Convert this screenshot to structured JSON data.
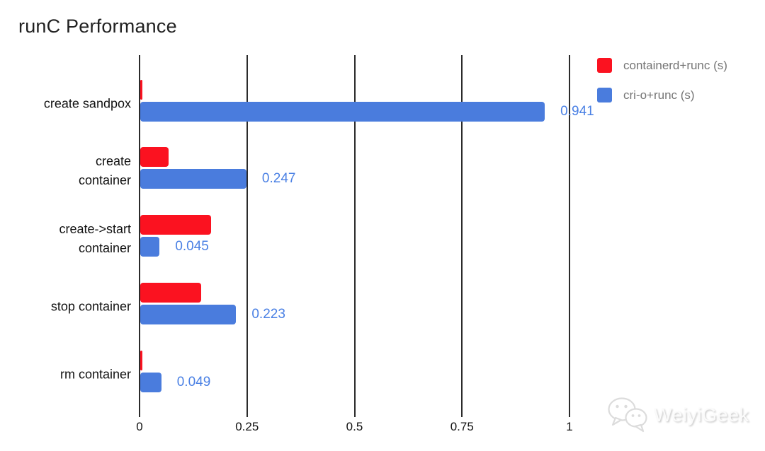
{
  "chart_data": {
    "type": "bar",
    "orientation": "horizontal",
    "title": "runC Performance",
    "xlabel": "",
    "ylabel": "",
    "xlim": [
      0,
      1.0
    ],
    "grid": "vertical-only",
    "legend_position": "top-right",
    "categories": [
      "create sandpox",
      "create\ncontainer",
      "create->start\ncontainer",
      "stop container",
      "rm container"
    ],
    "series": [
      {
        "name": "containerd+runc (s)",
        "color": "#fb1220",
        "values": [
          0.005,
          0.066,
          0.165,
          0.142,
          0.005
        ],
        "data_labels": null
      },
      {
        "name": "cri-o+runc (s)",
        "color": "#4a7cdd",
        "values": [
          0.941,
          0.247,
          0.045,
          0.223,
          0.049
        ],
        "data_labels": [
          "0.941",
          "0.247",
          "0.045",
          "0.223",
          "0.049"
        ]
      }
    ],
    "x_ticks": {
      "values": [
        0,
        0.25,
        0.5,
        0.75,
        1
      ],
      "labels": [
        "0",
        "0.25",
        "0.5",
        "0.75",
        "1"
      ]
    },
    "value_label_color": "#4a80e4",
    "gridline_color": "#2b2b2b"
  },
  "watermark": {
    "text": "WeiyiGeek",
    "icon": "wechat-icon"
  }
}
